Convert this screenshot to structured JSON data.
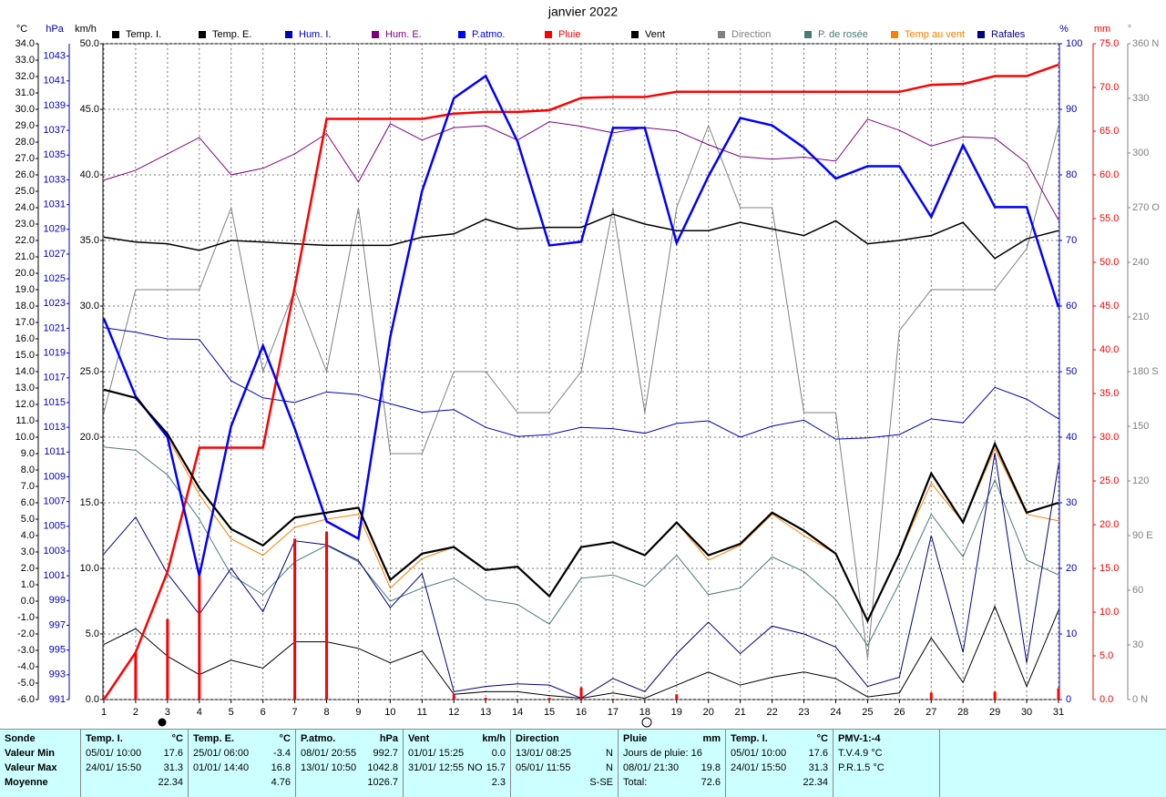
{
  "chart_data": {
    "type": "line",
    "title": "janvier 2022",
    "x": [
      1,
      2,
      3,
      4,
      5,
      6,
      7,
      8,
      9,
      10,
      11,
      12,
      13,
      14,
      15,
      16,
      17,
      18,
      19,
      20,
      21,
      22,
      23,
      24,
      25,
      26,
      27,
      28,
      29,
      30,
      31
    ],
    "xlim": [
      1,
      31
    ],
    "xticks": [
      1,
      2,
      3,
      4,
      5,
      6,
      7,
      8,
      9,
      10,
      11,
      12,
      13,
      14,
      15,
      16,
      17,
      18,
      19,
      20,
      21,
      22,
      23,
      24,
      25,
      26,
      27,
      28,
      29,
      30,
      31
    ],
    "axes": [
      {
        "label": "°C",
        "color": "#000000",
        "ylim": [
          -6,
          34
        ],
        "yticks": [
          {
            "value": 34,
            "label": "34.0"
          },
          {
            "value": 33,
            "label": "33.0"
          },
          {
            "value": 32,
            "label": "32.0"
          },
          {
            "value": 31,
            "label": "31.0"
          },
          {
            "value": 30,
            "label": "30.0"
          },
          {
            "value": 29,
            "label": "29.0"
          },
          {
            "value": 28,
            "label": "28.0"
          },
          {
            "value": 27,
            "label": "27.0"
          },
          {
            "value": 26,
            "label": "26.0"
          },
          {
            "value": 25,
            "label": "25.0"
          },
          {
            "value": 24,
            "label": "24.0"
          },
          {
            "value": 23,
            "label": "23.0"
          },
          {
            "value": 22,
            "label": "22.0"
          },
          {
            "value": 21,
            "label": "21.0"
          },
          {
            "value": 20,
            "label": "20.0"
          },
          {
            "value": 19,
            "label": "19.0"
          },
          {
            "value": 18,
            "label": "18.0"
          },
          {
            "value": 17,
            "label": "17.0"
          },
          {
            "value": 16,
            "label": "16.0"
          },
          {
            "value": 15,
            "label": "15.0"
          },
          {
            "value": 14,
            "label": "14.0"
          },
          {
            "value": 13,
            "label": "13.0"
          },
          {
            "value": 12,
            "label": "12.0"
          },
          {
            "value": 11,
            "label": "11.0"
          },
          {
            "value": 10,
            "label": "10.0"
          },
          {
            "value": 9,
            "label": "9.0"
          },
          {
            "value": 8,
            "label": "8.0"
          },
          {
            "value": 7,
            "label": "7.0"
          },
          {
            "value": 6,
            "label": "6.0"
          },
          {
            "value": 5,
            "label": "5.0"
          },
          {
            "value": 4,
            "label": "4.0"
          },
          {
            "value": 3,
            "label": "3.0"
          },
          {
            "value": 2,
            "label": "2.0"
          },
          {
            "value": 1,
            "label": "1.0"
          },
          {
            "value": 0,
            "label": "0.0"
          },
          {
            "value": -1,
            "label": "-1.0"
          },
          {
            "value": -2,
            "label": "-2.0"
          },
          {
            "value": -3,
            "label": "-3.0"
          },
          {
            "value": -4,
            "label": "-4.0"
          },
          {
            "value": -5,
            "label": "-5.0"
          },
          {
            "value": -6,
            "label": "-6.0"
          }
        ],
        "grid": false
      },
      {
        "label": "hPa",
        "color": "#0000c0",
        "ylim": [
          991,
          1044
        ],
        "yticks": [
          1043,
          1041,
          1039,
          1037,
          1035,
          1033,
          1031,
          1029,
          1027,
          1025,
          1023,
          1021,
          1019,
          1017,
          1015,
          1013,
          1011,
          1009,
          1007,
          1005,
          1003,
          1001,
          999,
          997,
          995,
          993,
          991
        ],
        "grid": false
      },
      {
        "label": "km/h",
        "color": "#000000",
        "ylim": [
          0,
          50
        ],
        "yticks": [
          {
            "value": 50,
            "label": "50.0"
          },
          {
            "value": 45,
            "label": "45.0"
          },
          {
            "value": 40,
            "label": "40.0"
          },
          {
            "value": 35,
            "label": "35.0"
          },
          {
            "value": 30,
            "label": "30.0"
          },
          {
            "value": 25,
            "label": "25.0"
          },
          {
            "value": 20,
            "label": "20.0"
          },
          {
            "value": 15,
            "label": "15.0"
          },
          {
            "value": 10,
            "label": "10.0"
          },
          {
            "value": 5,
            "label": "5.0"
          },
          {
            "value": 0,
            "label": "0.0"
          }
        ],
        "grid": true
      },
      {
        "label": "%",
        "color": "#0000c0",
        "ylim": [
          0,
          100
        ],
        "yticks": [
          100,
          90,
          80,
          70,
          60,
          50,
          40,
          30,
          20,
          10,
          0
        ],
        "grid": false
      },
      {
        "label": "mm",
        "color": "#ff0000",
        "ylim": [
          0,
          75
        ],
        "yticks": [
          {
            "value": 75,
            "label": "75.0"
          },
          {
            "value": 70,
            "label": "70.0"
          },
          {
            "value": 65,
            "label": "65.0"
          },
          {
            "value": 60,
            "label": "60.0"
          },
          {
            "value": 55,
            "label": "55.0"
          },
          {
            "value": 50,
            "label": "50.0"
          },
          {
            "value": 45,
            "label": "45.0"
          },
          {
            "value": 40,
            "label": "40.0"
          },
          {
            "value": 35,
            "label": "35.0"
          },
          {
            "value": 30,
            "label": "30.0"
          },
          {
            "value": 25,
            "label": "25.0"
          },
          {
            "value": 20,
            "label": "20.0"
          },
          {
            "value": 15,
            "label": "15.0"
          },
          {
            "value": 10,
            "label": "10.0"
          },
          {
            "value": 5,
            "label": "5.0"
          },
          {
            "value": 0,
            "label": "0.0"
          }
        ],
        "grid": false
      },
      {
        "label": "°",
        "color": "#808080",
        "ylim": [
          0,
          360
        ],
        "yticks": [
          {
            "value": 360,
            "label": "360 N"
          },
          330,
          300,
          {
            "value": 270,
            "label": "270 O"
          },
          240,
          210,
          {
            "value": 180,
            "label": "180 S"
          },
          150,
          120,
          {
            "value": 90,
            "label": "90 E"
          },
          60,
          30,
          {
            "value": 0,
            "label": "0 N"
          }
        ],
        "grid": false
      }
    ],
    "series": [
      {
        "name": "Temp. I.",
        "color": "#000000",
        "axis": 0,
        "width": 1.5,
        "values": [
          22.2,
          21.9,
          21.8,
          21.4,
          22.0,
          21.9,
          21.8,
          21.7,
          21.7,
          21.7,
          22.2,
          22.4,
          23.3,
          22.7,
          22.8,
          22.8,
          23.6,
          23.0,
          22.6,
          22.6,
          23.1,
          22.7,
          22.3,
          23.2,
          21.8,
          22.0,
          22.3,
          23.1,
          20.9,
          22.1,
          22.6
        ]
      },
      {
        "name": "Temp. E.",
        "color": "#000000",
        "axis": 0,
        "width": 2.2,
        "values": [
          12.9,
          12.4,
          10.2,
          6.9,
          4.4,
          3.4,
          5.1,
          5.4,
          5.7,
          1.3,
          2.9,
          3.3,
          1.9,
          2.1,
          0.3,
          3.3,
          3.6,
          2.8,
          4.8,
          2.8,
          3.5,
          5.4,
          4.3,
          2.9,
          -1.2,
          2.9,
          7.8,
          4.8,
          9.6,
          5.4,
          6.0
        ]
      },
      {
        "name": "Hum. I.",
        "color": "#0000c0",
        "axis": 3,
        "width": 1,
        "values": [
          56.7,
          56.0,
          55.0,
          54.9,
          48.6,
          46.0,
          45.3,
          46.9,
          46.5,
          45.1,
          43.8,
          44.2,
          41.5,
          40.1,
          40.4,
          41.5,
          41.3,
          40.6,
          42.1,
          42.5,
          40.0,
          41.7,
          42.6,
          39.7,
          39.9,
          40.4,
          42.8,
          42.2,
          47.6,
          45.8,
          42.8
        ]
      },
      {
        "name": "Hum. E.",
        "color": "#800080",
        "axis": 3,
        "width": 1,
        "values": [
          79.2,
          80.7,
          83.2,
          85.7,
          80.0,
          81.0,
          83.2,
          86.3,
          78.9,
          87.8,
          85.3,
          87.2,
          87.5,
          85.3,
          88.1,
          87.4,
          86.4,
          87.2,
          86.7,
          84.6,
          82.8,
          82.4,
          82.7,
          82.1,
          88.5,
          86.8,
          84.4,
          85.8,
          85.6,
          81.8,
          73.1
        ]
      },
      {
        "name": "P.atmo.",
        "color": "#0000ff",
        "axis": 1,
        "width": 2.5,
        "values": [
          1021.8,
          1015.5,
          1012.2,
          1001.0,
          1013.1,
          1019.6,
          1012.9,
          1005.4,
          1004.0,
          1020.3,
          1032.1,
          1039.6,
          1041.4,
          1036.1,
          1027.7,
          1028.0,
          1037.2,
          1037.2,
          1027.9,
          1033.3,
          1038.0,
          1037.4,
          1035.6,
          1033.1,
          1034.1,
          1034.1,
          1030.0,
          1035.8,
          1030.8,
          1030.8,
          1022.7
        ]
      },
      {
        "name": "Pluie",
        "color": "#ff0000",
        "axis": 4,
        "width": 2.5,
        "values": [
          0,
          5.4,
          14.6,
          28.8,
          28.8,
          28.8,
          47.2,
          66.4,
          66.4,
          66.4,
          66.4,
          67.0,
          67.2,
          67.2,
          67.4,
          68.8,
          68.9,
          68.9,
          69.5,
          69.5,
          69.5,
          69.5,
          69.5,
          69.5,
          69.5,
          69.5,
          70.3,
          70.4,
          71.3,
          71.3,
          72.6
        ],
        "daily_values": [
          0,
          5.4,
          9.2,
          14.2,
          0,
          0,
          18.4,
          19.2,
          0,
          0,
          0,
          0.6,
          0.2,
          0,
          0.2,
          1.4,
          0.1,
          0,
          0.6,
          0,
          0,
          0,
          0,
          0,
          0,
          0,
          0.8,
          0.1,
          0.9,
          0,
          1.3
        ]
      },
      {
        "name": "Vent",
        "color": "#000000",
        "axis": 2,
        "width": 1,
        "values": [
          4.2,
          5.4,
          3.3,
          1.9,
          3.0,
          2.4,
          4.4,
          4.4,
          3.9,
          2.8,
          3.7,
          0.4,
          0.6,
          0.6,
          0.3,
          0.1,
          0.5,
          0.1,
          1.1,
          2.1,
          1.1,
          1.7,
          2.1,
          1.6,
          0.2,
          0.5,
          4.7,
          1.3,
          7.1,
          1.0,
          6.8
        ]
      },
      {
        "name": "Direction",
        "color": "#808080",
        "axis": 5,
        "width": 1,
        "values": [
          157.5,
          225,
          225,
          225,
          270,
          180,
          225,
          180,
          270,
          135,
          135,
          180,
          180,
          157.5,
          157.5,
          180,
          270,
          157.5,
          270,
          315,
          270,
          270,
          157.5,
          157.5,
          22.5,
          202.5,
          225,
          225,
          225,
          247.5,
          315
        ]
      },
      {
        "name": "P. de rosée",
        "color": "#4a7a78",
        "axis": 0,
        "width": 1,
        "values": [
          9.4,
          9.2,
          7.7,
          5.0,
          1.6,
          0.4,
          2.4,
          3.4,
          2.4,
          0.0,
          0.8,
          1.4,
          0.1,
          -0.2,
          -1.4,
          1.4,
          1.6,
          0.9,
          2.8,
          0.4,
          0.8,
          2.7,
          1.8,
          0.1,
          -2.7,
          1.1,
          5.3,
          2.7,
          7.4,
          2.5,
          1.6
        ]
      },
      {
        "name": "Temp au vent",
        "color": "#ff8000",
        "axis": 0,
        "width": 1,
        "values": [
          12.9,
          12.4,
          10.0,
          6.5,
          3.8,
          2.8,
          4.5,
          5.0,
          5.3,
          0.8,
          2.6,
          3.3,
          1.9,
          2.1,
          0.3,
          3.3,
          3.6,
          2.8,
          4.8,
          2.5,
          3.4,
          5.3,
          4.0,
          2.9,
          -1.2,
          2.9,
          7.2,
          4.8,
          9.3,
          5.3,
          4.9
        ]
      },
      {
        "name": "Rafales",
        "color": "#000080",
        "axis": 2,
        "width": 1,
        "values": [
          11.1,
          13.9,
          9.6,
          6.5,
          10.0,
          6.7,
          12.1,
          11.8,
          10.6,
          7.0,
          9.6,
          0.6,
          1.0,
          1.2,
          1.1,
          0.1,
          1.6,
          0.6,
          3.5,
          5.9,
          3.5,
          5.6,
          5.0,
          4.0,
          1.0,
          1.7,
          12.5,
          3.6,
          18.8,
          2.8,
          17.9
        ]
      }
    ]
  },
  "footer": {
    "row_labels": [
      "Sonde",
      "Valeur Min",
      "Valeur Max",
      "Moyenne"
    ],
    "columns": [
      {
        "title": "Temp. I.",
        "unit": "°C",
        "rows": [
          [
            "05/01/ 10:00",
            "17.6"
          ],
          [
            "24/01/ 15:50",
            "31.3"
          ],
          [
            "22.34"
          ]
        ]
      },
      {
        "title": "Temp. E.",
        "unit": "°C",
        "rows": [
          [
            "25/01/ 06:00",
            "-3.4"
          ],
          [
            "01/01/ 14:40",
            "16.8"
          ],
          [
            "4.76"
          ]
        ]
      },
      {
        "title": "P.atmo.",
        "unit": "hPa",
        "rows": [
          [
            "08/01/ 20:55",
            "992.7"
          ],
          [
            "13/01/ 10:50",
            "1042.8"
          ],
          [
            "1026.7"
          ]
        ]
      },
      {
        "title": "Vent",
        "unit": "km/h",
        "rows": [
          [
            "01/01/ 15:25",
            "0.0"
          ],
          [
            "31/01/ 12:55",
            "NO",
            "15.7"
          ],
          [
            "2.3"
          ]
        ]
      },
      {
        "title": "Direction",
        "unit": "",
        "rows": [
          [
            "13/01/ 08:25",
            "N"
          ],
          [
            "05/01/ 11:55",
            "N"
          ],
          [
            "S-SE"
          ]
        ]
      },
      {
        "title": "Pluie",
        "unit": "mm",
        "rows": [
          [
            "Jours de pluie: 16"
          ],
          [
            "08/01/ 21:30",
            "19.8"
          ],
          [
            "Total:",
            "72.6"
          ]
        ]
      },
      {
        "title": "Temp. I.",
        "unit": "°C",
        "rows": [
          [
            "05/01/ 10:00",
            "17.6"
          ],
          [
            "24/01/ 15:50",
            "31.3"
          ],
          [
            "22.34"
          ]
        ]
      },
      {
        "title": "PMV-1:-4",
        "unit": "",
        "rows": [
          [
            "T.V.4.9 °C"
          ],
          [
            "P.R.1.5 °C"
          ]
        ]
      }
    ]
  }
}
